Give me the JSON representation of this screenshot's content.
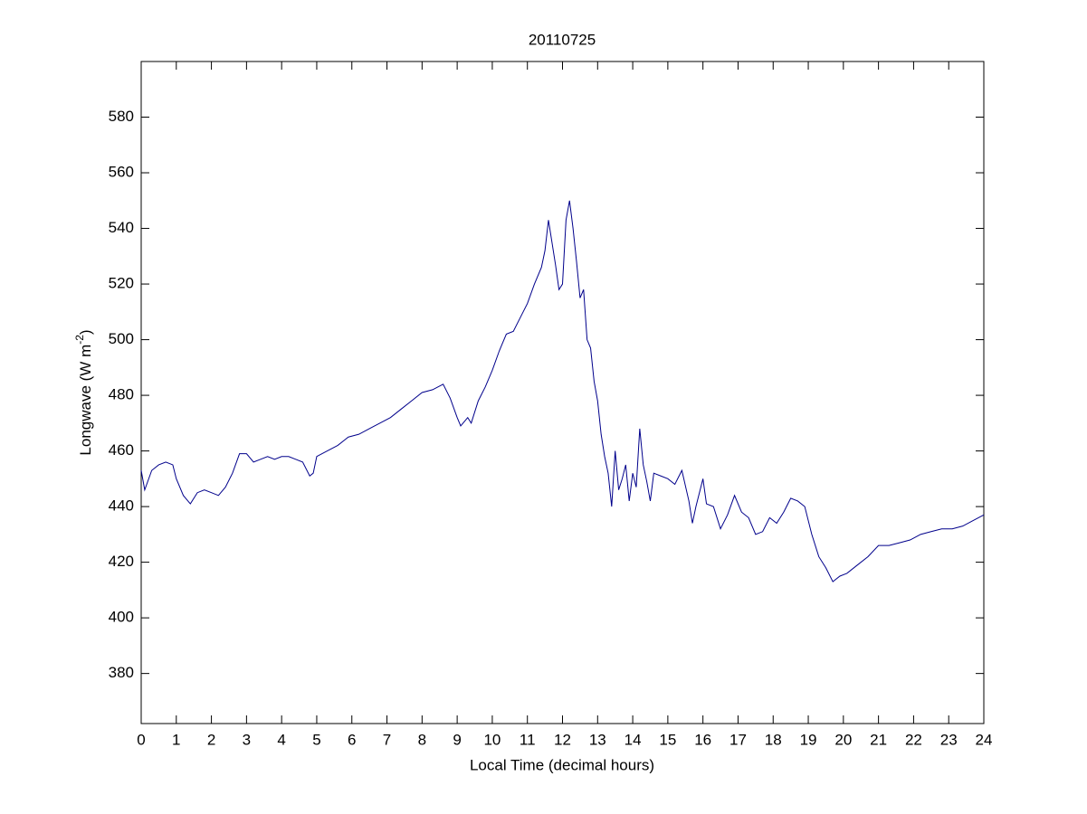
{
  "chart_data": {
    "type": "line",
    "title": "20110725",
    "xlabel": "Local Time (decimal hours)",
    "ylabel": {
      "text": "Longwave (W m",
      "sup": "-2",
      "end": ")"
    },
    "x": [
      0,
      0.1,
      0.3,
      0.5,
      0.7,
      0.9,
      1.0,
      1.2,
      1.4,
      1.6,
      1.8,
      2.0,
      2.2,
      2.4,
      2.6,
      2.8,
      3.0,
      3.2,
      3.4,
      3.6,
      3.8,
      4.0,
      4.2,
      4.4,
      4.6,
      4.8,
      4.9,
      5.0,
      5.3,
      5.6,
      5.9,
      6.2,
      6.5,
      6.8,
      7.1,
      7.4,
      7.7,
      8.0,
      8.3,
      8.6,
      8.8,
      9.0,
      9.1,
      9.3,
      9.4,
      9.6,
      9.8,
      10.0,
      10.2,
      10.4,
      10.6,
      10.8,
      11.0,
      11.2,
      11.4,
      11.5,
      11.6,
      11.7,
      11.8,
      11.9,
      12.0,
      12.1,
      12.2,
      12.3,
      12.4,
      12.5,
      12.6,
      12.7,
      12.8,
      12.9,
      13.0,
      13.1,
      13.2,
      13.3,
      13.4,
      13.5,
      13.6,
      13.7,
      13.8,
      13.9,
      14.0,
      14.1,
      14.2,
      14.3,
      14.4,
      14.5,
      14.6,
      14.8,
      15.0,
      15.2,
      15.4,
      15.6,
      15.7,
      15.8,
      16.0,
      16.1,
      16.3,
      16.5,
      16.7,
      16.9,
      17.1,
      17.3,
      17.5,
      17.7,
      17.9,
      18.1,
      18.3,
      18.5,
      18.7,
      18.9,
      19.1,
      19.3,
      19.5,
      19.7,
      19.9,
      20.1,
      20.4,
      20.7,
      21.0,
      21.3,
      21.6,
      21.9,
      22.2,
      22.5,
      22.8,
      23.1,
      23.4,
      23.7,
      24.0
    ],
    "series": [
      {
        "name": "Longwave",
        "color": "#00008b",
        "values": [
          453,
          446,
          453,
          455,
          456,
          455,
          450,
          444,
          441,
          445,
          446,
          445,
          444,
          447,
          452,
          459,
          459,
          456,
          457,
          458,
          457,
          458,
          458,
          457,
          456,
          451,
          452,
          458,
          460,
          462,
          465,
          466,
          468,
          470,
          472,
          475,
          478,
          481,
          482,
          484,
          479,
          472,
          469,
          472,
          470,
          478,
          483,
          489,
          496,
          502,
          503,
          508,
          513,
          520,
          526,
          532,
          543,
          535,
          527,
          518,
          520,
          543,
          550,
          540,
          528,
          515,
          518,
          500,
          497,
          485,
          478,
          466,
          458,
          452,
          440,
          460,
          446,
          450,
          455,
          442,
          452,
          447,
          468,
          455,
          449,
          442,
          452,
          451,
          450,
          448,
          453,
          442,
          434,
          440,
          450,
          441,
          440,
          432,
          437,
          444,
          438,
          436,
          430,
          431,
          436,
          434,
          438,
          443,
          442,
          440,
          430,
          422,
          418,
          413,
          415,
          416,
          419,
          422,
          426,
          426,
          427,
          428,
          430,
          431,
          432,
          432,
          433,
          435,
          437
        ]
      }
    ],
    "xlim": [
      0,
      24
    ],
    "xticks": [
      0,
      1,
      2,
      3,
      4,
      5,
      6,
      7,
      8,
      9,
      10,
      11,
      12,
      13,
      14,
      15,
      16,
      17,
      18,
      19,
      20,
      21,
      22,
      23,
      24
    ],
    "ylim": [
      362,
      600
    ],
    "yticks": [
      380,
      400,
      420,
      440,
      460,
      480,
      500,
      520,
      540,
      560,
      580
    ],
    "grid": false
  }
}
